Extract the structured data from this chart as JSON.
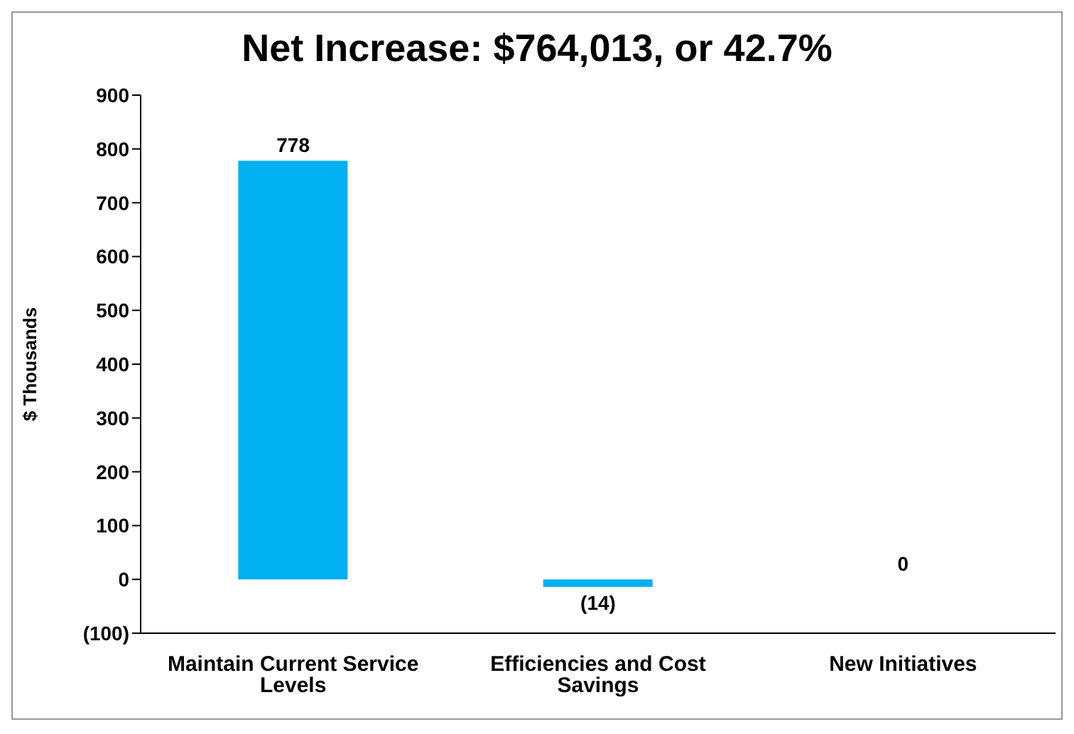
{
  "chart_data": {
    "type": "bar",
    "title": "Net Increase: $764,013, or 42.7%",
    "ylabel": "$ Thousands",
    "categories": [
      "Maintain Current Service Levels",
      "Efficiencies and Cost Savings",
      "New Initiatives"
    ],
    "values": [
      778,
      -14,
      0
    ],
    "value_labels": [
      "778",
      "(14)",
      "0"
    ],
    "color": "#00b0f0",
    "ylim": [
      -100,
      900
    ],
    "yticks": [
      {
        "value": -100,
        "label": "(100)"
      },
      0,
      100,
      200,
      300,
      400,
      500,
      600,
      700,
      800,
      900
    ],
    "grid": false
  }
}
